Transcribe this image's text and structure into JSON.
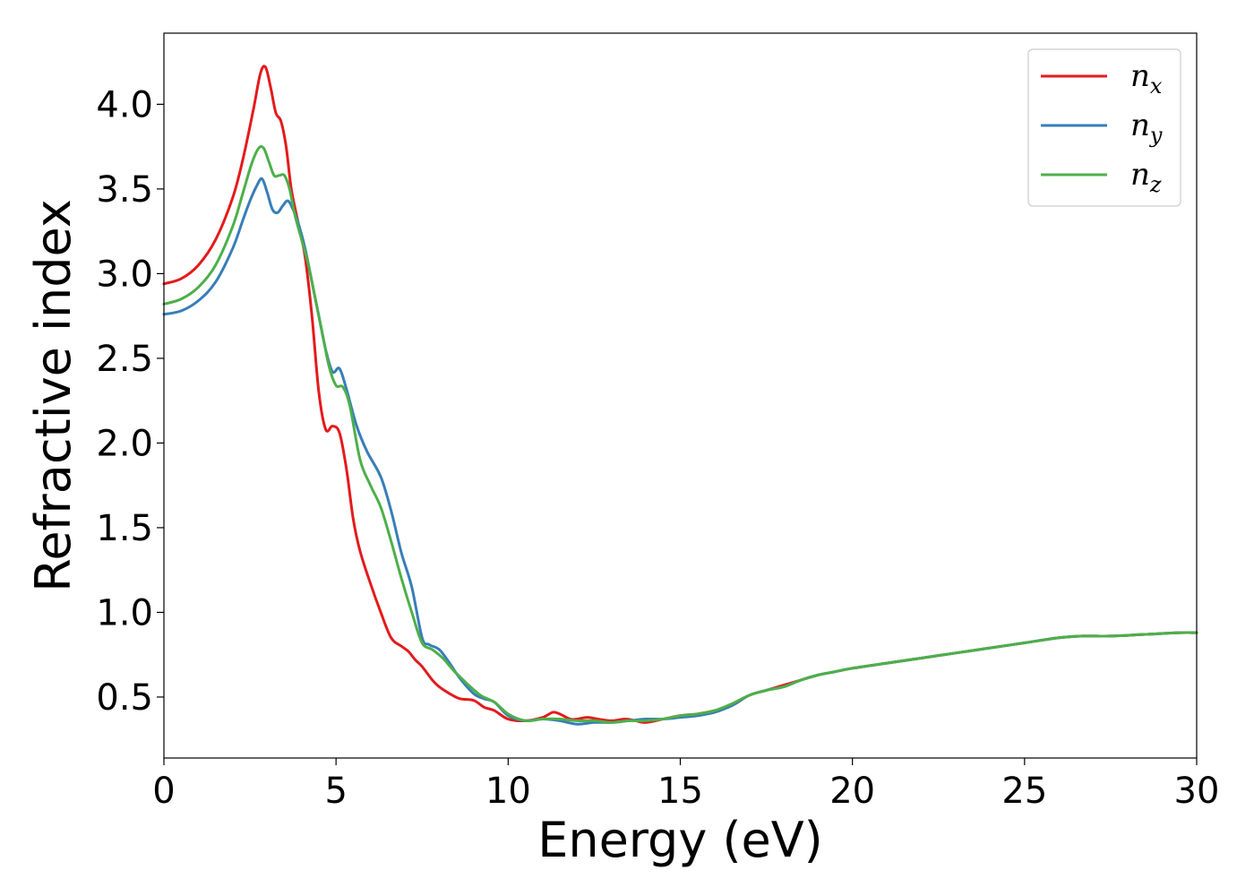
{
  "chart_data": {
    "type": "line",
    "xlabel": "Energy (eV)",
    "ylabel": "Refractive index",
    "xlim": [
      0,
      30
    ],
    "ylim": [
      0.14,
      4.42
    ],
    "x_ticks": [
      0,
      5,
      10,
      15,
      20,
      25,
      30
    ],
    "x_tick_labels": [
      "0",
      "5",
      "10",
      "15",
      "20",
      "25",
      "30"
    ],
    "y_ticks": [
      0.5,
      1.0,
      1.5,
      2.0,
      2.5,
      3.0,
      3.5,
      4.0
    ],
    "y_tick_labels": [
      "0.5",
      "1.0",
      "1.5",
      "2.0",
      "2.5",
      "3.0",
      "3.5",
      "4.0"
    ],
    "grid": false,
    "legend_position": "top-right",
    "series": [
      {
        "name": "n_x",
        "label_base": "n",
        "label_sub": "x",
        "color": "#e41a1c",
        "x": [
          0,
          0.5,
          1.0,
          1.5,
          2.0,
          2.3,
          2.6,
          2.8,
          2.95,
          3.1,
          3.25,
          3.4,
          3.55,
          3.7,
          3.9,
          4.1,
          4.3,
          4.5,
          4.7,
          4.9,
          5.1,
          5.3,
          5.5,
          5.7,
          6.0,
          6.3,
          6.6,
          6.9,
          7.1,
          7.3,
          7.5,
          7.8,
          8.0,
          8.3,
          8.6,
          9.0,
          9.3,
          9.6,
          10.0,
          10.5,
          11.0,
          11.3,
          11.5,
          11.8,
          12.0,
          12.3,
          12.6,
          13.0,
          13.4,
          13.7,
          14.0,
          14.5,
          15.0,
          15.5,
          16.0,
          16.5,
          17.0,
          17.5,
          18.0,
          18.5,
          19.0,
          19.5,
          20.0,
          21.0,
          22.0,
          23.0,
          24.0,
          25.0,
          26.0,
          26.7,
          27.5,
          28.5,
          29.5,
          30.0
        ],
        "y": [
          2.94,
          2.97,
          3.05,
          3.2,
          3.45,
          3.68,
          3.97,
          4.18,
          4.22,
          4.1,
          3.95,
          3.9,
          3.75,
          3.5,
          3.3,
          3.1,
          2.75,
          2.3,
          2.08,
          2.1,
          2.06,
          1.85,
          1.55,
          1.36,
          1.17,
          1.0,
          0.85,
          0.8,
          0.77,
          0.72,
          0.68,
          0.6,
          0.56,
          0.52,
          0.49,
          0.48,
          0.44,
          0.42,
          0.37,
          0.36,
          0.38,
          0.41,
          0.4,
          0.37,
          0.37,
          0.38,
          0.37,
          0.36,
          0.37,
          0.36,
          0.35,
          0.37,
          0.39,
          0.4,
          0.42,
          0.45,
          0.51,
          0.54,
          0.57,
          0.6,
          0.63,
          0.65,
          0.67,
          0.7,
          0.73,
          0.76,
          0.79,
          0.82,
          0.85,
          0.86,
          0.86,
          0.87,
          0.88,
          0.88
        ]
      },
      {
        "name": "n_y",
        "label_base": "n",
        "label_sub": "y",
        "color": "#377eb8",
        "x": [
          0,
          0.5,
          1.0,
          1.5,
          2.0,
          2.3,
          2.5,
          2.7,
          2.85,
          3.0,
          3.15,
          3.3,
          3.45,
          3.6,
          3.75,
          3.9,
          4.1,
          4.3,
          4.5,
          4.7,
          4.9,
          5.1,
          5.3,
          5.6,
          5.9,
          6.3,
          6.6,
          6.9,
          7.2,
          7.5,
          7.7,
          8.0,
          8.3,
          8.6,
          9.0,
          9.3,
          9.6,
          10.0,
          10.5,
          11.0,
          11.5,
          12.0,
          12.5,
          13.0,
          13.5,
          14.0,
          14.5,
          15.0,
          15.5,
          16.0,
          16.5,
          17.0,
          17.5,
          18.0,
          18.5,
          19.0,
          19.5,
          20.0,
          21.0,
          22.0,
          23.0,
          24.0,
          25.0,
          26.0,
          26.7,
          27.5,
          28.5,
          29.5,
          30.0
        ],
        "y": [
          2.76,
          2.78,
          2.84,
          2.95,
          3.15,
          3.32,
          3.43,
          3.52,
          3.56,
          3.48,
          3.38,
          3.36,
          3.4,
          3.43,
          3.38,
          3.3,
          3.15,
          2.95,
          2.75,
          2.55,
          2.42,
          2.44,
          2.32,
          2.1,
          1.95,
          1.8,
          1.6,
          1.35,
          1.15,
          0.85,
          0.81,
          0.78,
          0.7,
          0.61,
          0.52,
          0.49,
          0.47,
          0.39,
          0.36,
          0.37,
          0.36,
          0.34,
          0.35,
          0.35,
          0.36,
          0.37,
          0.37,
          0.38,
          0.39,
          0.41,
          0.45,
          0.51,
          0.54,
          0.56,
          0.6,
          0.63,
          0.65,
          0.67,
          0.7,
          0.73,
          0.76,
          0.79,
          0.82,
          0.85,
          0.86,
          0.86,
          0.87,
          0.88,
          0.88
        ]
      },
      {
        "name": "n_z",
        "label_base": "n",
        "label_sub": "z",
        "color": "#4daf4a",
        "x": [
          0,
          0.5,
          1.0,
          1.5,
          2.0,
          2.3,
          2.55,
          2.75,
          2.9,
          3.05,
          3.2,
          3.35,
          3.5,
          3.65,
          3.8,
          4.0,
          4.2,
          4.4,
          4.6,
          4.8,
          5.0,
          5.2,
          5.4,
          5.7,
          6.0,
          6.3,
          6.6,
          6.9,
          7.2,
          7.5,
          7.8,
          8.1,
          8.4,
          8.8,
          9.2,
          9.6,
          10.0,
          10.5,
          11.0,
          11.5,
          12.0,
          12.5,
          13.0,
          13.5,
          14.0,
          14.5,
          15.0,
          15.5,
          16.0,
          16.5,
          17.0,
          17.5,
          18.0,
          18.5,
          19.0,
          19.5,
          20.0,
          21.0,
          22.0,
          23.0,
          24.0,
          25.0,
          26.0,
          26.7,
          27.5,
          28.5,
          29.5,
          30.0
        ],
        "y": [
          2.82,
          2.85,
          2.92,
          3.05,
          3.28,
          3.48,
          3.65,
          3.74,
          3.74,
          3.66,
          3.58,
          3.58,
          3.58,
          3.5,
          3.35,
          3.2,
          3.05,
          2.85,
          2.65,
          2.45,
          2.34,
          2.33,
          2.22,
          1.9,
          1.75,
          1.62,
          1.42,
          1.2,
          1.0,
          0.82,
          0.78,
          0.73,
          0.66,
          0.58,
          0.51,
          0.47,
          0.4,
          0.36,
          0.37,
          0.37,
          0.36,
          0.36,
          0.35,
          0.36,
          0.36,
          0.37,
          0.39,
          0.4,
          0.42,
          0.46,
          0.51,
          0.54,
          0.56,
          0.6,
          0.63,
          0.65,
          0.67,
          0.7,
          0.73,
          0.76,
          0.79,
          0.82,
          0.85,
          0.86,
          0.86,
          0.87,
          0.88,
          0.88
        ]
      }
    ]
  }
}
